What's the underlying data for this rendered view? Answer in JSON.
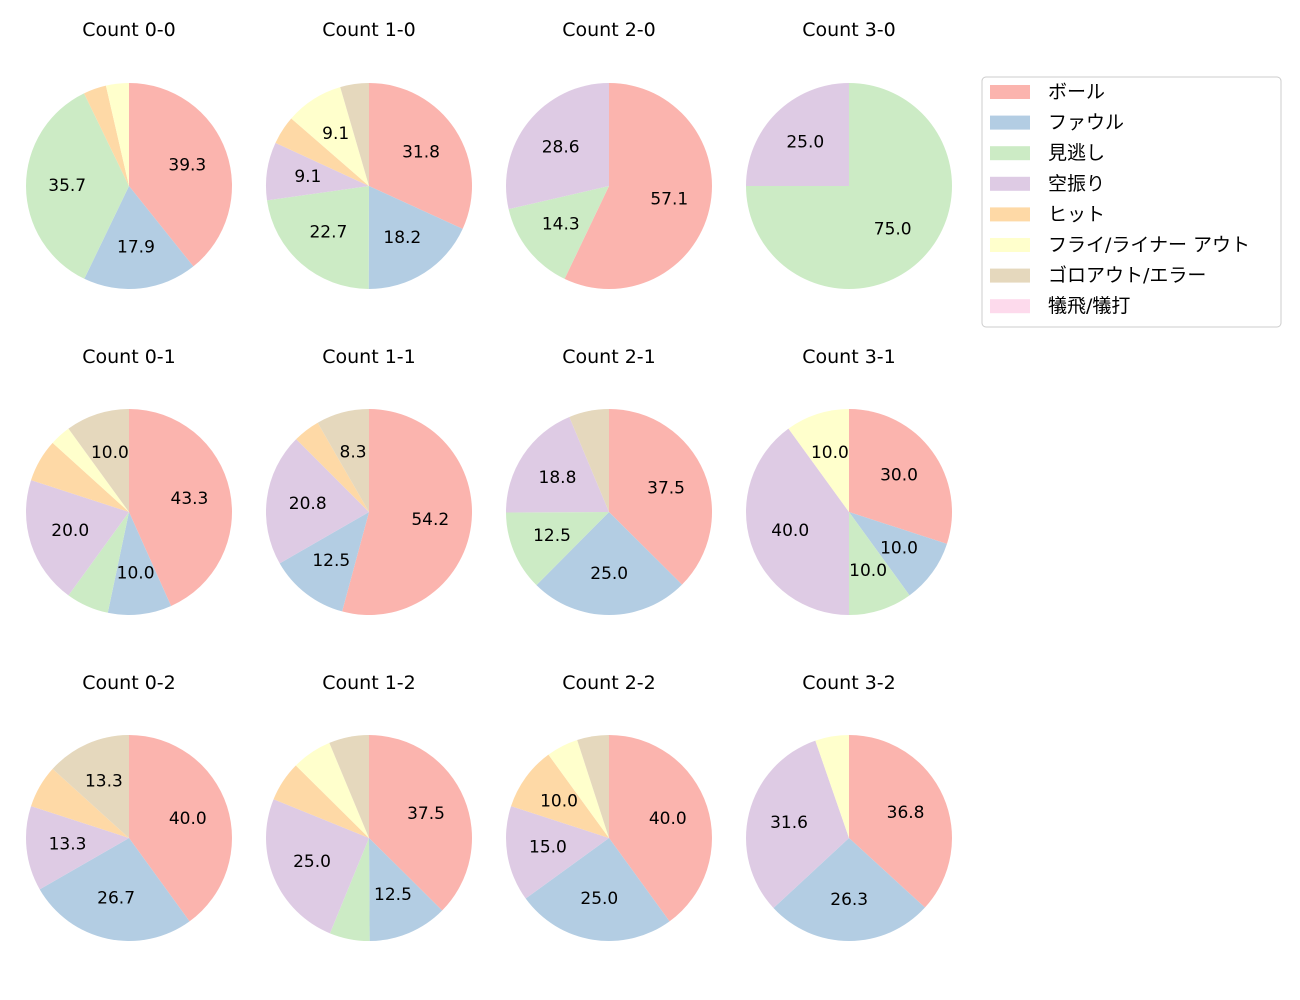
{
  "chart_data": {
    "type": "pie",
    "legend_placement": "top-right",
    "colors": [
      "#fbb4ae",
      "#b3cde3",
      "#ccebc5",
      "#decbe4",
      "#fed9a6",
      "#ffffcc",
      "#e5d8bd",
      "#fddaec"
    ],
    "legend": [
      "ボール",
      "ファウル",
      "見逃し",
      "空振り",
      "ヒット",
      "フライ/ライナー アウト",
      "ゴロアウト/エラー",
      "犠飛/犠打"
    ],
    "pies": [
      {
        "title": "Count 0-0",
        "values": [
          39.3,
          17.9,
          35.7,
          0,
          3.6,
          3.6,
          0,
          0
        ]
      },
      {
        "title": "Count 1-0",
        "values": [
          31.8,
          18.2,
          22.7,
          9.1,
          4.5,
          9.1,
          4.5,
          0
        ]
      },
      {
        "title": "Count 2-0",
        "values": [
          57.1,
          0,
          14.3,
          28.6,
          0,
          0,
          0,
          0
        ]
      },
      {
        "title": "Count 3-0",
        "values": [
          0,
          0,
          75.0,
          25.0,
          0,
          0,
          0,
          0
        ]
      },
      {
        "title": "Count 0-1",
        "values": [
          43.3,
          10.0,
          6.7,
          20.0,
          6.7,
          3.3,
          10.0,
          0
        ]
      },
      {
        "title": "Count 1-1",
        "values": [
          54.2,
          12.5,
          0,
          20.8,
          4.2,
          0,
          8.3,
          0
        ]
      },
      {
        "title": "Count 2-1",
        "values": [
          37.5,
          25.0,
          12.5,
          18.8,
          0,
          0,
          6.3,
          0
        ]
      },
      {
        "title": "Count 3-1",
        "values": [
          30.0,
          10.0,
          10.0,
          40.0,
          0,
          10.0,
          0,
          0
        ]
      },
      {
        "title": "Count 0-2",
        "values": [
          40.0,
          26.7,
          0,
          13.3,
          6.7,
          0,
          13.3,
          0
        ]
      },
      {
        "title": "Count 1-2",
        "values": [
          37.5,
          12.5,
          6.3,
          25.0,
          6.3,
          6.3,
          6.3,
          0
        ]
      },
      {
        "title": "Count 2-2",
        "values": [
          40.0,
          25.0,
          0,
          15.0,
          10.0,
          5.0,
          5.0,
          0
        ]
      },
      {
        "title": "Count 3-2",
        "values": [
          36.8,
          26.3,
          0,
          31.6,
          0,
          5.3,
          0,
          0
        ]
      }
    ]
  }
}
